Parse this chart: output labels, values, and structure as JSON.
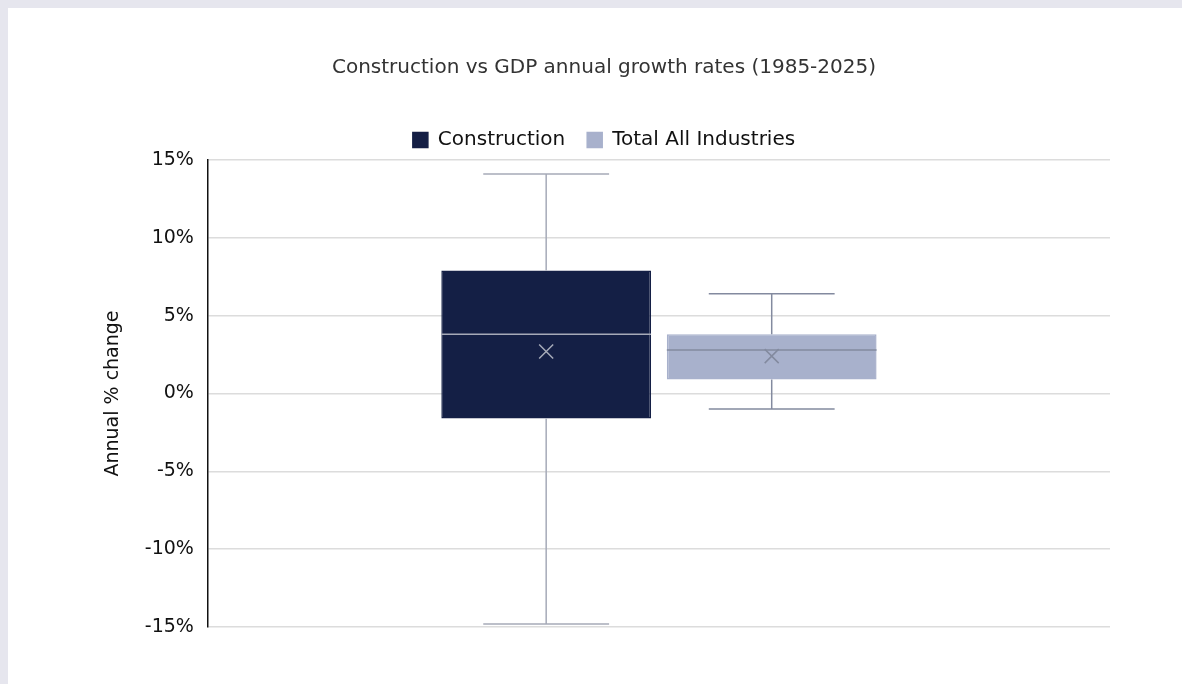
{
  "chart_data": {
    "type": "box",
    "title": "Construction vs GDP annual growth rates (1985-2025)",
    "ylabel": "Annual % change",
    "categories": [
      null
    ],
    "series": [
      {
        "name": "Construction",
        "color": "#141f45",
        "boxes": [
          {
            "low": -14.8,
            "q1": -1.6,
            "median": 3.8,
            "q3": 7.9,
            "high": 14.1,
            "mean": 2.7
          }
        ]
      },
      {
        "name": "Total All Industries",
        "color": "#a8b1cc",
        "boxes": [
          {
            "low": -1.0,
            "q1": 0.9,
            "median": 2.8,
            "q3": 3.8,
            "high": 6.4,
            "mean": 2.4
          }
        ]
      }
    ],
    "ylim": [
      -15,
      15
    ],
    "yticks": [
      {
        "value": -15,
        "label": "-15%"
      },
      {
        "value": -10,
        "label": "-10%"
      },
      {
        "value": -5,
        "label": "-5%"
      },
      {
        "value": 0,
        "label": "0%"
      },
      {
        "value": 5,
        "label": "5%"
      },
      {
        "value": 10,
        "label": "10%"
      },
      {
        "value": 15,
        "label": "15%"
      }
    ],
    "grid": "y",
    "legend": "top",
    "tick_labels": "y"
  }
}
